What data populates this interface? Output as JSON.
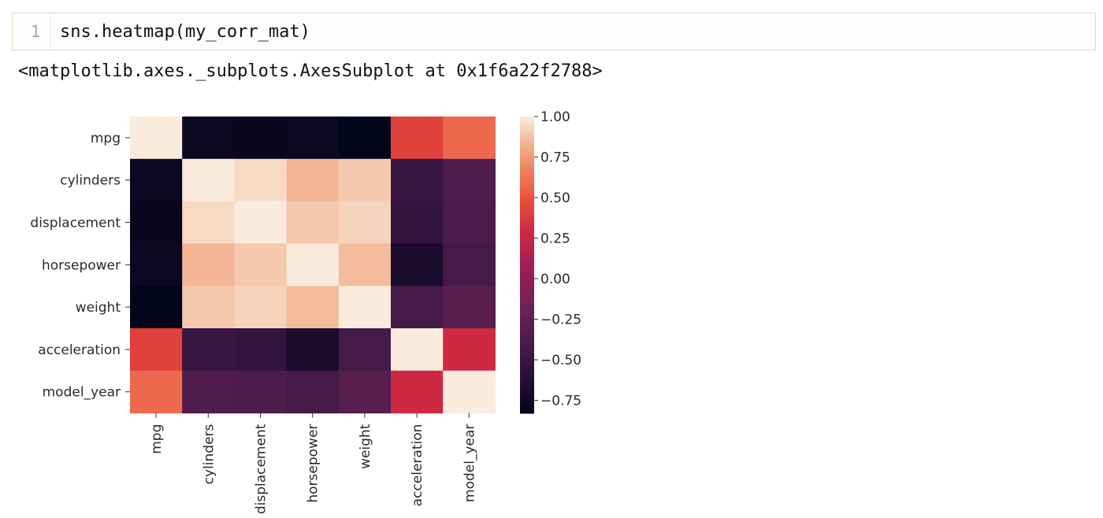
{
  "cell": {
    "line_number": "1",
    "code": "sns.heatmap(my_corr_mat)"
  },
  "output": {
    "repr": "<matplotlib.axes._subplots.AxesSubplot at 0x1f6a22f2788>"
  },
  "chart_data": {
    "type": "heatmap",
    "rows": [
      "mpg",
      "cylinders",
      "displacement",
      "horsepower",
      "weight",
      "acceleration",
      "model_year"
    ],
    "columns": [
      "mpg",
      "cylinders",
      "displacement",
      "horsepower",
      "weight",
      "acceleration",
      "model_year"
    ],
    "values": [
      [
        1.0,
        -0.78,
        -0.8,
        -0.78,
        -0.83,
        0.42,
        0.58
      ],
      [
        -0.78,
        1.0,
        0.95,
        0.84,
        0.9,
        -0.5,
        -0.35
      ],
      [
        -0.8,
        0.95,
        1.0,
        0.9,
        0.93,
        -0.54,
        -0.37
      ],
      [
        -0.78,
        0.84,
        0.9,
        1.0,
        0.86,
        -0.69,
        -0.42
      ],
      [
        -0.83,
        0.9,
        0.93,
        0.86,
        1.0,
        -0.42,
        -0.31
      ],
      [
        0.42,
        -0.5,
        -0.54,
        -0.69,
        -0.42,
        1.0,
        0.29
      ],
      [
        0.58,
        -0.35,
        -0.37,
        -0.42,
        -0.31,
        0.29,
        1.0
      ]
    ],
    "colormap": "rocket",
    "colorbar": {
      "range": [
        -0.83,
        1.0
      ],
      "ticks": [
        1.0,
        0.75,
        0.5,
        0.25,
        0.0,
        -0.25,
        -0.5,
        -0.75
      ],
      "tick_labels": [
        "1.00",
        "0.75",
        "0.50",
        "0.25",
        "0.00",
        "−0.25",
        "−0.50",
        "−0.75"
      ]
    },
    "title": "",
    "xlabel": "",
    "ylabel": "",
    "grid": false,
    "legend": "colorbar-right"
  }
}
